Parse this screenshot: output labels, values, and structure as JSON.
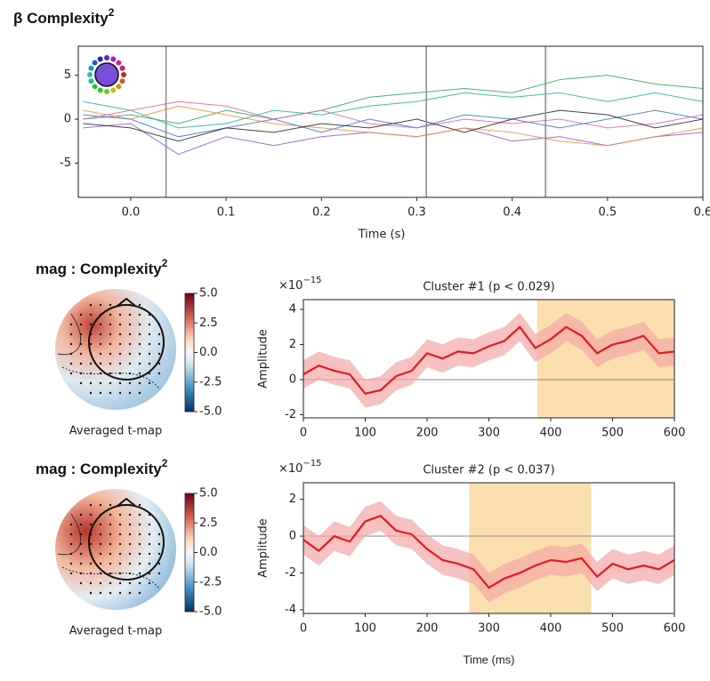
{
  "chart_data": [
    {
      "type": "line",
      "title": "β Complexity",
      "title_superscript": "2",
      "xlabel": "Time (s)",
      "x": [
        -0.05,
        0.0,
        0.05,
        0.1,
        0.15,
        0.2,
        0.25,
        0.3,
        0.35,
        0.4,
        0.45,
        0.5,
        0.55,
        0.6
      ],
      "series": [
        {
          "color": "#2ca25f",
          "values": [
            0,
            0.5,
            -0.5,
            1,
            0,
            1,
            2.5,
            3,
            3.5,
            3,
            4.5,
            5,
            4,
            3.5
          ]
        },
        {
          "color": "#19b3a6",
          "values": [
            2,
            1,
            -1,
            -0.5,
            1,
            0.5,
            1.5,
            2,
            3,
            2.5,
            3,
            2,
            3,
            2
          ]
        },
        {
          "color": "#8856d9",
          "values": [
            -1,
            -0.5,
            -4,
            -2,
            -3,
            -2,
            -1.5,
            -2,
            -1,
            -2.5,
            -2,
            -3,
            -2,
            -1.5
          ]
        },
        {
          "color": "#f08c3c",
          "values": [
            1,
            0,
            1.5,
            0.5,
            -0.5,
            -1,
            -1.5,
            -2,
            -1,
            -1.5,
            -2.5,
            -3,
            -2,
            -1
          ]
        },
        {
          "color": "#3b6fd9",
          "values": [
            0.5,
            0,
            -2,
            -1,
            0,
            -1.5,
            0,
            -1,
            0.5,
            0,
            -1,
            0,
            1,
            0
          ]
        },
        {
          "color": "#e0609f",
          "values": [
            0,
            1,
            2,
            1.5,
            0,
            1,
            -0.5,
            -1,
            0,
            -0.5,
            0,
            -1,
            -0.5,
            0.5
          ]
        },
        {
          "color": "#222222",
          "values": [
            -0.5,
            -1,
            -2.5,
            -1,
            -1.5,
            -0.5,
            -1,
            0,
            -1.5,
            0,
            1,
            0.5,
            -1,
            0
          ]
        }
      ],
      "vlines": [
        0.037,
        0.31,
        0.435
      ],
      "xlim": [
        -0.055,
        0.6
      ],
      "ylim": [
        -8.9,
        8.3
      ],
      "xticks": [
        {
          "value": 0,
          "label": "0.0"
        },
        0.1,
        0.2,
        0.3,
        0.4,
        0.5,
        0.6
      ],
      "yticks": [
        -5,
        0,
        5
      ]
    },
    {
      "type": "topomap",
      "title": "mag :  Complexity",
      "title_superscript": "2",
      "caption": "Averaged t-map",
      "clim": [
        -5,
        5
      ],
      "cticks": [
        {
          "value": 5,
          "label": "5.0"
        },
        2.5,
        {
          "value": 0,
          "label": "0.0"
        },
        -2.5,
        {
          "value": -5,
          "label": "-5.0"
        }
      ]
    },
    {
      "type": "line",
      "title": "Cluster #1 (p < 0.029)",
      "ylabel": "Amplitude",
      "y_scale_base": "×10",
      "y_scale_exponent": "−15",
      "color": "#e31a1c",
      "band_color": "#f4a6a6",
      "span_color": "#fbd9a0",
      "x": [
        0,
        25,
        50,
        75,
        100,
        125,
        150,
        175,
        200,
        225,
        250,
        275,
        300,
        325,
        350,
        375,
        400,
        425,
        450,
        475,
        500,
        525,
        550,
        575,
        600
      ],
      "values": [
        0.3,
        0.8,
        0.5,
        0.3,
        -0.8,
        -0.6,
        0.2,
        0.5,
        1.5,
        1.2,
        1.6,
        1.5,
        1.9,
        2.2,
        3.0,
        1.8,
        2.3,
        3.0,
        2.5,
        1.5,
        2.0,
        2.2,
        2.5,
        1.5,
        1.6
      ],
      "error": 0.8,
      "span": [
        378,
        600
      ],
      "xlim": [
        0,
        600
      ],
      "ylim": [
        -2.18,
        4.56
      ],
      "xticks": [
        0,
        100,
        200,
        300,
        400,
        500,
        600
      ],
      "yticks": [
        -2,
        0,
        2,
        4
      ]
    },
    {
      "type": "topomap",
      "title": "mag :  Complexity",
      "title_superscript": "2",
      "caption": "Averaged t-map",
      "clim": [
        -5,
        5
      ],
      "cticks": [
        {
          "value": 5,
          "label": "5.0"
        },
        2.5,
        {
          "value": 0,
          "label": "0.0"
        },
        -2.5,
        {
          "value": -5,
          "label": "-5.0"
        }
      ]
    },
    {
      "type": "line",
      "title": "Cluster #2 (p < 0.037)",
      "ylabel": "Amplitude",
      "y_scale_base": "×10",
      "y_scale_exponent": "−15",
      "xlabel": "Time (ms)",
      "color": "#e31a1c",
      "band_color": "#f4a6a6",
      "span_color": "#fbd9a0",
      "x": [
        0,
        25,
        50,
        75,
        100,
        125,
        150,
        175,
        200,
        225,
        250,
        275,
        300,
        325,
        350,
        375,
        400,
        425,
        450,
        475,
        500,
        525,
        550,
        575,
        600
      ],
      "values": [
        -0.2,
        -0.8,
        0,
        -0.3,
        0.8,
        1.1,
        0.3,
        0.1,
        -0.7,
        -1.3,
        -1.5,
        -1.8,
        -2.8,
        -2.3,
        -2.0,
        -1.6,
        -1.3,
        -1.4,
        -1.2,
        -2.2,
        -1.5,
        -1.8,
        -1.6,
        -1.8,
        -1.3
      ],
      "error": 0.8,
      "span": [
        268,
        465
      ],
      "xlim": [
        0,
        600
      ],
      "ylim": [
        -4.2,
        2.9
      ],
      "xticks": [
        0,
        100,
        200,
        300,
        400,
        500,
        600
      ],
      "yticks": [
        -4,
        -2,
        0,
        2
      ]
    }
  ]
}
